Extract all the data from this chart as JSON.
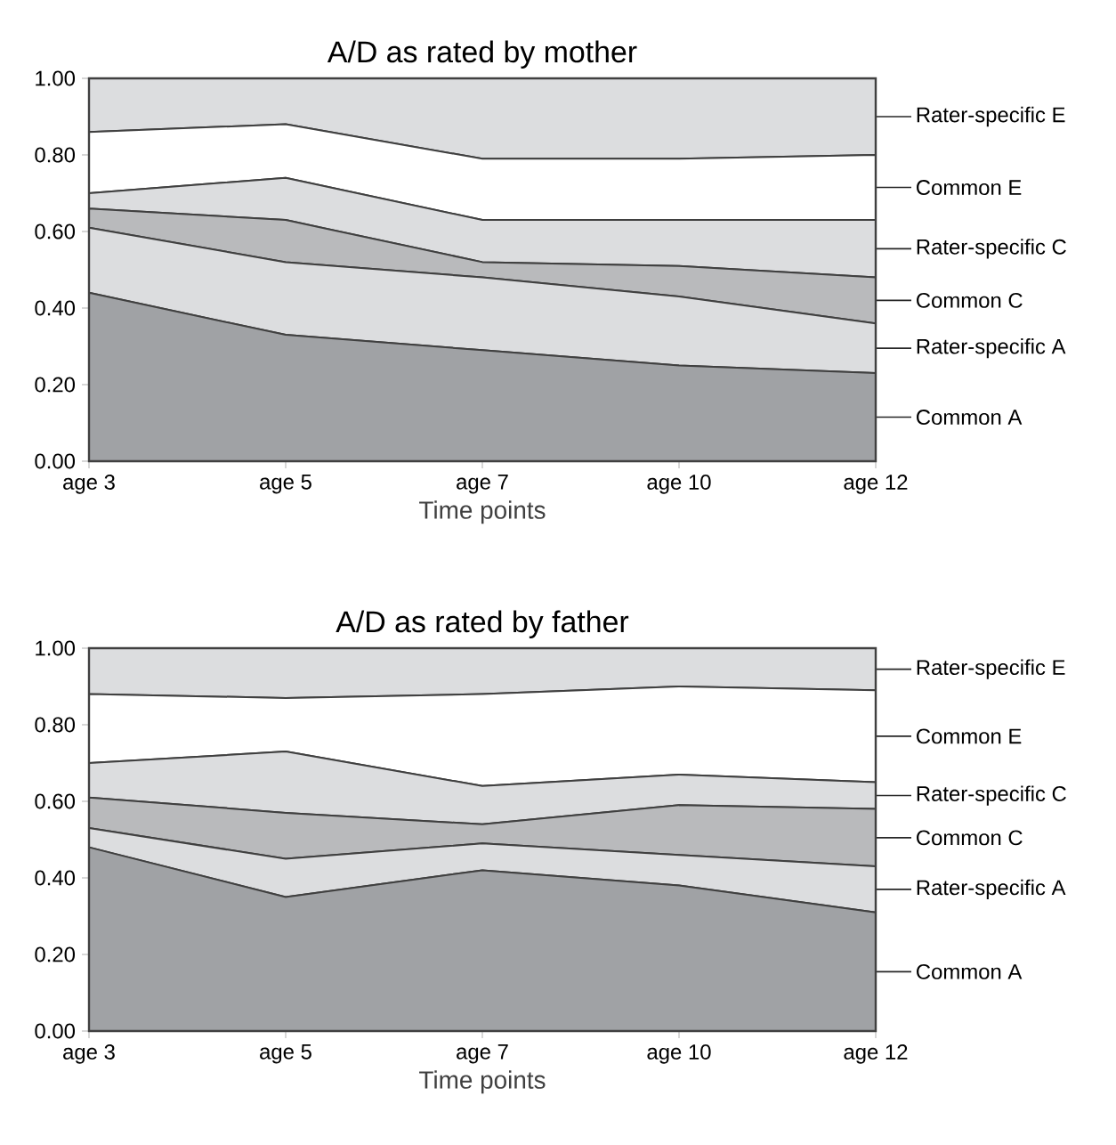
{
  "chart_data": [
    {
      "type": "area",
      "stacked": true,
      "title": "A/D as rated by mother",
      "xlabel": "Time points",
      "categories": [
        "age 3",
        "age 5",
        "age 7",
        "age 10",
        "age 12"
      ],
      "ylim": [
        0,
        1
      ],
      "yticks": [
        {
          "value": 0,
          "label": "0.00"
        },
        {
          "value": 0.2,
          "label": "0.20"
        },
        {
          "value": 0.4,
          "label": "0.40"
        },
        {
          "value": 0.6,
          "label": "0.60"
        },
        {
          "value": 0.8,
          "label": "0.80"
        },
        {
          "value": 1,
          "label": "1.00"
        }
      ],
      "series": [
        {
          "name": "Common A",
          "color": "#a0a2a5",
          "values": [
            0.44,
            0.33,
            0.29,
            0.25,
            0.23
          ]
        },
        {
          "name": "Rater-specific A",
          "color": "#dcdddf",
          "values": [
            0.17,
            0.19,
            0.19,
            0.18,
            0.13
          ]
        },
        {
          "name": "Common C",
          "color": "#b9babc",
          "values": [
            0.05,
            0.11,
            0.04,
            0.08,
            0.12
          ]
        },
        {
          "name": "Rater-specific C",
          "color": "#dcdddf",
          "values": [
            0.04,
            0.11,
            0.11,
            0.12,
            0.15
          ]
        },
        {
          "name": "Common E",
          "color": "#ffffff",
          "values": [
            0.16,
            0.14,
            0.16,
            0.16,
            0.17
          ]
        },
        {
          "name": "Rater-specific E",
          "color": "#dcdddf",
          "values": [
            0.14,
            0.12,
            0.21,
            0.21,
            0.2
          ]
        }
      ]
    },
    {
      "type": "area",
      "stacked": true,
      "title": "A/D as rated by father",
      "xlabel": "Time points",
      "categories": [
        "age 3",
        "age 5",
        "age 7",
        "age 10",
        "age 12"
      ],
      "ylim": [
        0,
        1
      ],
      "yticks": [
        {
          "value": 0,
          "label": "0.00"
        },
        {
          "value": 0.2,
          "label": "0.20"
        },
        {
          "value": 0.4,
          "label": "0.40"
        },
        {
          "value": 0.6,
          "label": "0.60"
        },
        {
          "value": 0.8,
          "label": "0.80"
        },
        {
          "value": 1,
          "label": "1.00"
        }
      ],
      "series": [
        {
          "name": "Common A",
          "color": "#a0a2a5",
          "values": [
            0.48,
            0.35,
            0.42,
            0.38,
            0.31
          ]
        },
        {
          "name": "Rater-specific A",
          "color": "#dcdddf",
          "values": [
            0.05,
            0.1,
            0.07,
            0.08,
            0.12
          ]
        },
        {
          "name": "Common C",
          "color": "#b9babc",
          "values": [
            0.08,
            0.12,
            0.05,
            0.13,
            0.15
          ]
        },
        {
          "name": "Rater-specific C",
          "color": "#dcdddf",
          "values": [
            0.09,
            0.16,
            0.1,
            0.08,
            0.07
          ]
        },
        {
          "name": "Common E",
          "color": "#ffffff",
          "values": [
            0.18,
            0.14,
            0.24,
            0.23,
            0.24
          ]
        },
        {
          "name": "Rater-specific E",
          "color": "#dcdddf",
          "values": [
            0.12,
            0.13,
            0.12,
            0.1,
            0.11
          ]
        }
      ]
    }
  ]
}
